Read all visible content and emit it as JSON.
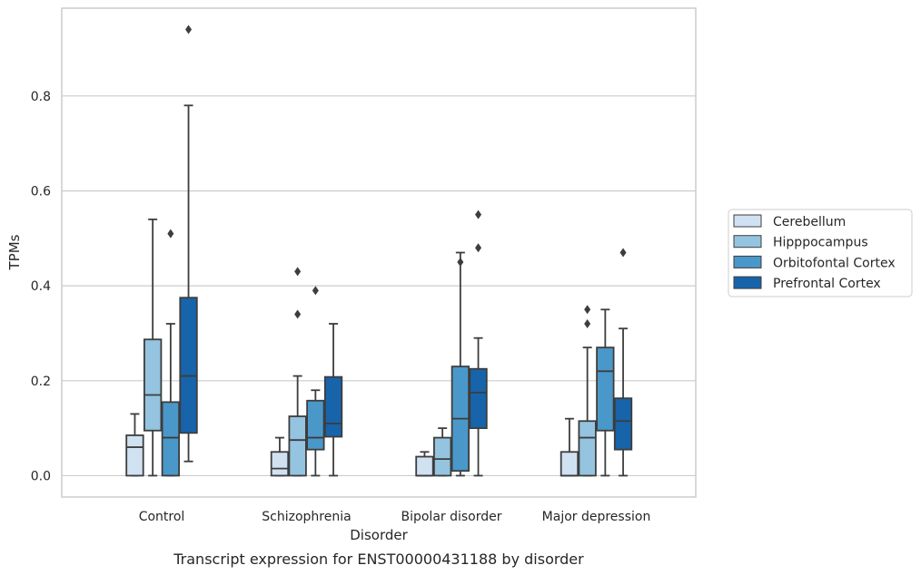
{
  "chart_data": {
    "type": "box",
    "xlabel": "Disorder",
    "ylabel": "TPMs",
    "caption": "Transcript expression for ENST00000431188 by disorder",
    "ylim": [
      -0.045,
      0.985
    ],
    "yticks": [
      0.0,
      0.2,
      0.4,
      0.6,
      0.8
    ],
    "ytick_labels": [
      "0.0",
      "0.2",
      "0.4",
      "0.6",
      "0.8"
    ],
    "grid": "horizontal",
    "legend_position": "right-center",
    "categories": [
      "Control",
      "Schizophrenia",
      "Bipolar disorder",
      "Major depression"
    ],
    "series": [
      {
        "name": "Cerebellum",
        "color": "#d0e1f2",
        "boxes": [
          {
            "whisker_low": 0.0,
            "q1": 0.0,
            "median": 0.06,
            "q3": 0.085,
            "whisker_high": 0.13,
            "outliers": []
          },
          {
            "whisker_low": 0.0,
            "q1": 0.0,
            "median": 0.015,
            "q3": 0.05,
            "whisker_high": 0.08,
            "outliers": []
          },
          {
            "whisker_low": 0.0,
            "q1": 0.0,
            "median": 0.0,
            "q3": 0.04,
            "whisker_high": 0.05,
            "outliers": []
          },
          {
            "whisker_low": 0.0,
            "q1": 0.0,
            "median": 0.0,
            "q3": 0.05,
            "whisker_high": 0.12,
            "outliers": []
          }
        ]
      },
      {
        "name": "Hipppocampus",
        "color": "#94c4df",
        "boxes": [
          {
            "whisker_low": 0.0,
            "q1": 0.095,
            "median": 0.17,
            "q3": 0.287,
            "whisker_high": 0.54,
            "outliers": []
          },
          {
            "whisker_low": 0.0,
            "q1": 0.0,
            "median": 0.075,
            "q3": 0.125,
            "whisker_high": 0.21,
            "outliers": [
              0.34,
              0.43
            ]
          },
          {
            "whisker_low": 0.0,
            "q1": 0.0,
            "median": 0.035,
            "q3": 0.08,
            "whisker_high": 0.1,
            "outliers": []
          },
          {
            "whisker_low": 0.0,
            "q1": 0.0,
            "median": 0.08,
            "q3": 0.115,
            "whisker_high": 0.27,
            "outliers": [
              0.32,
              0.35
            ]
          }
        ]
      },
      {
        "name": "Orbitofontal Cortex",
        "color": "#4a98c9",
        "boxes": [
          {
            "whisker_low": 0.0,
            "q1": 0.0,
            "median": 0.08,
            "q3": 0.155,
            "whisker_high": 0.32,
            "outliers": [
              0.51
            ]
          },
          {
            "whisker_low": 0.0,
            "q1": 0.055,
            "median": 0.08,
            "q3": 0.158,
            "whisker_high": 0.18,
            "outliers": [
              0.39
            ]
          },
          {
            "whisker_low": 0.0,
            "q1": 0.01,
            "median": 0.12,
            "q3": 0.23,
            "whisker_high": 0.47,
            "outliers": [
              0.45
            ]
          },
          {
            "whisker_low": 0.0,
            "q1": 0.095,
            "median": 0.22,
            "q3": 0.27,
            "whisker_high": 0.35,
            "outliers": []
          }
        ]
      },
      {
        "name": "Prefrontal Cortex",
        "color": "#1764ab",
        "boxes": [
          {
            "whisker_low": 0.03,
            "q1": 0.09,
            "median": 0.21,
            "q3": 0.375,
            "whisker_high": 0.78,
            "outliers": [
              0.94
            ]
          },
          {
            "whisker_low": 0.0,
            "q1": 0.082,
            "median": 0.11,
            "q3": 0.208,
            "whisker_high": 0.32,
            "outliers": []
          },
          {
            "whisker_low": 0.0,
            "q1": 0.1,
            "median": 0.175,
            "q3": 0.225,
            "whisker_high": 0.29,
            "outliers": [
              0.48,
              0.55
            ]
          },
          {
            "whisker_low": 0.0,
            "q1": 0.055,
            "median": 0.115,
            "q3": 0.163,
            "whisker_high": 0.31,
            "outliers": [
              0.47
            ]
          }
        ]
      }
    ]
  }
}
